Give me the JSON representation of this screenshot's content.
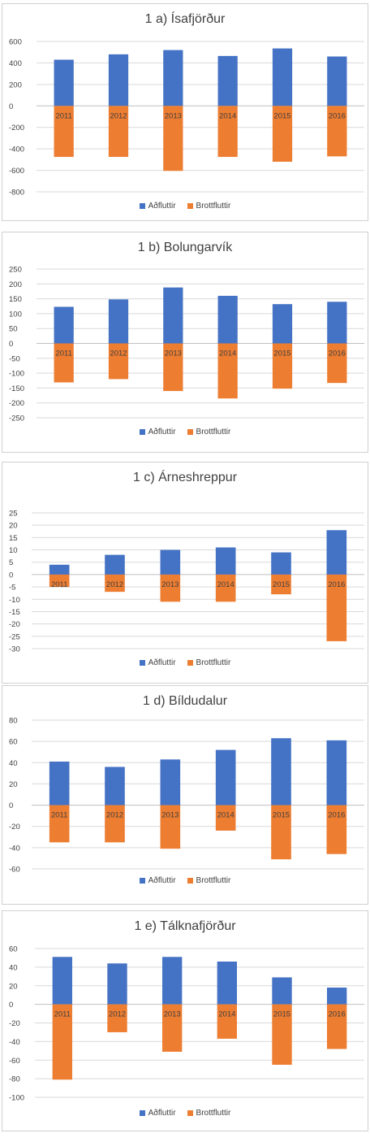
{
  "colors": {
    "aedfluttir": "#4472c4",
    "brottfluttir": "#ed7d31"
  },
  "chart_data": [
    {
      "type": "bar",
      "title": "1 a) Ísafjörður",
      "categories": [
        "2011",
        "2012",
        "2013",
        "2014",
        "2015",
        "2016"
      ],
      "series": [
        {
          "name": "Aðfluttir",
          "values": [
            430,
            480,
            520,
            465,
            535,
            460
          ]
        },
        {
          "name": "Brottfluttir",
          "values": [
            -475,
            -475,
            -605,
            -475,
            -520,
            -470
          ]
        }
      ],
      "ylim": [
        -800,
        600
      ],
      "yticks": [
        600,
        400,
        200,
        0,
        -200,
        -400,
        -600,
        -800
      ],
      "grid": true,
      "legend": "bottom"
    },
    {
      "type": "bar",
      "title": "1 b) Bolungarvík",
      "categories": [
        "2011",
        "2012",
        "2013",
        "2014",
        "2015",
        "2016"
      ],
      "series": [
        {
          "name": "Aðfluttir",
          "values": [
            123,
            148,
            188,
            160,
            132,
            140
          ]
        },
        {
          "name": "Brottfluttir",
          "values": [
            -131,
            -120,
            -160,
            -185,
            -152,
            -133
          ]
        }
      ],
      "ylim": [
        -250,
        250
      ],
      "yticks": [
        250,
        200,
        150,
        100,
        50,
        0,
        -50,
        -100,
        -150,
        -200,
        -250
      ],
      "grid": true,
      "legend": "bottom"
    },
    {
      "type": "bar",
      "title": "1 c) Árneshreppur",
      "categories": [
        "2011",
        "2012",
        "2013",
        "2014",
        "2015",
        "2016"
      ],
      "series": [
        {
          "name": "Aðfluttir",
          "values": [
            4,
            8,
            10,
            11,
            9,
            18
          ]
        },
        {
          "name": "Brottfluttir",
          "values": [
            -5,
            -7,
            -11,
            -11,
            -8,
            -27
          ]
        }
      ],
      "ylim": [
        -30,
        25
      ],
      "yticks": [
        25,
        20,
        15,
        10,
        5,
        0,
        -5,
        -10,
        -15,
        -20,
        -25,
        -30
      ],
      "grid": true,
      "legend": "bottom"
    },
    {
      "type": "bar",
      "title": "1 d) Bíldudalur",
      "categories": [
        "2011",
        "2012",
        "2013",
        "2014",
        "2015",
        "2016"
      ],
      "series": [
        {
          "name": "Aðfluttir",
          "values": [
            41,
            36,
            43,
            52,
            63,
            61
          ]
        },
        {
          "name": "Brottfluttir",
          "values": [
            -35,
            -35,
            -41,
            -24,
            -51,
            -46
          ]
        }
      ],
      "ylim": [
        -60,
        80
      ],
      "yticks": [
        80,
        60,
        40,
        20,
        0,
        -20,
        -40,
        -60
      ],
      "grid": true,
      "legend": "bottom"
    },
    {
      "type": "bar",
      "title": "1 e) Tálknafjörður",
      "categories": [
        "2011",
        "2012",
        "2013",
        "2014",
        "2015",
        "2016"
      ],
      "series": [
        {
          "name": "Aðfluttir",
          "values": [
            51,
            44,
            51,
            46,
            29,
            18
          ]
        },
        {
          "name": "Brottfluttir",
          "values": [
            -81,
            -30,
            -51,
            -37,
            -65,
            -48
          ]
        }
      ],
      "ylim": [
        -100,
        60
      ],
      "yticks": [
        60,
        40,
        20,
        0,
        -20,
        -40,
        -60,
        -80,
        -100
      ],
      "grid": true,
      "legend": "bottom"
    }
  ]
}
